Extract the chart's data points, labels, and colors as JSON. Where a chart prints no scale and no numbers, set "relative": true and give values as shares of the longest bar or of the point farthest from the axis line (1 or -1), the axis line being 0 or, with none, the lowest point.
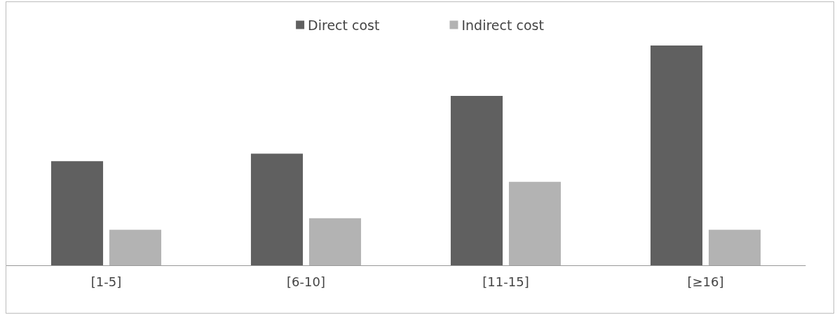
{
  "chart_data": {
    "type": "bar",
    "relative": true,
    "categories": [
      "[1-5]",
      "[6-10]",
      "[11-15]",
      "[≥16]"
    ],
    "series": [
      {
        "name": "Direct cost",
        "color": "#606060",
        "values": [
          0.474,
          0.508,
          0.771,
          1
        ]
      },
      {
        "name": "Indirect cost",
        "color": "#b3b3b3",
        "values": [
          0.162,
          0.214,
          0.38,
          0.162
        ]
      }
    ],
    "legend": "top"
  }
}
